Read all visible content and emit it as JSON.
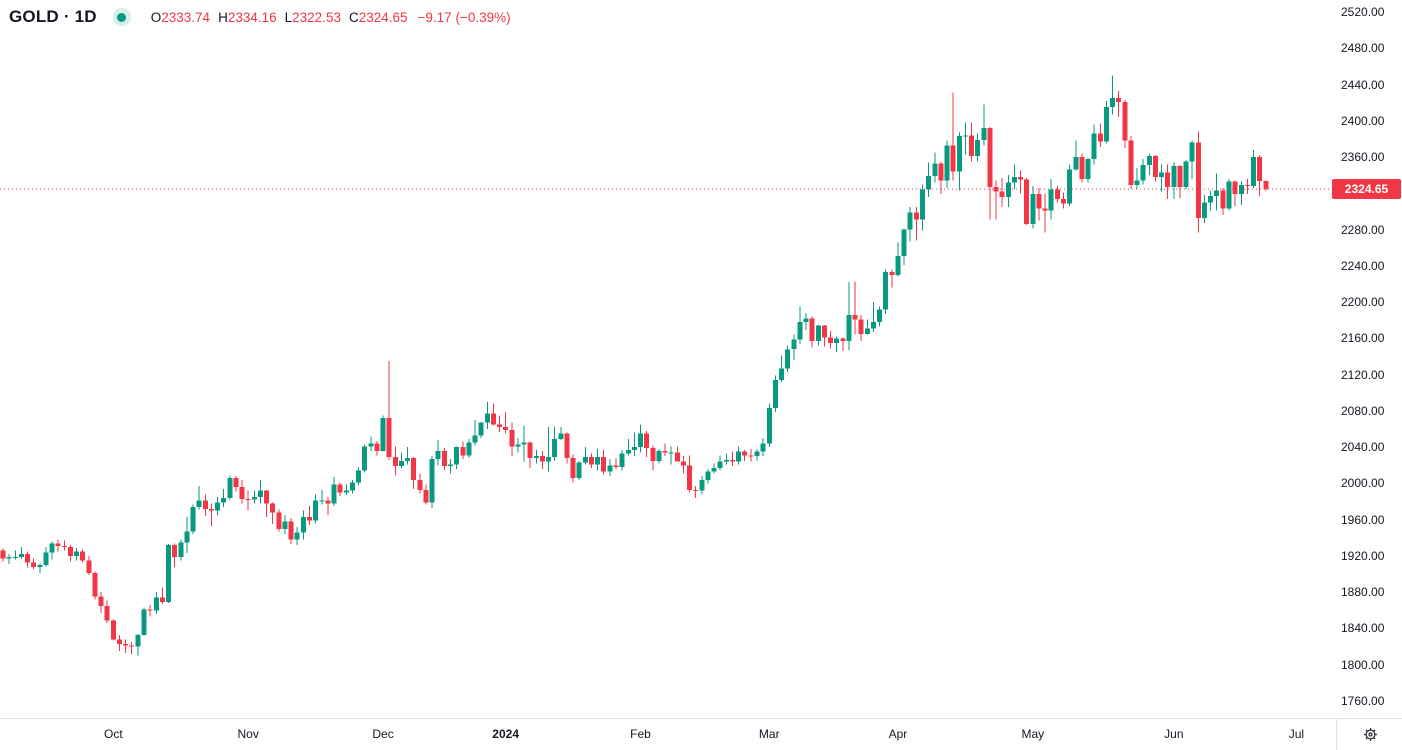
{
  "header": {
    "title": "GOLD · 1D",
    "ohlc": {
      "o_label": "O",
      "o_value": "2333.74",
      "h_label": "H",
      "h_value": "2334.16",
      "l_label": "L",
      "l_value": "2322.53",
      "c_label": "C",
      "c_value": "2324.65",
      "change": "−9.17 (−0.39%)"
    }
  },
  "colors": {
    "up": "#089981",
    "down": "#F23645",
    "text": "#131722",
    "divider": "#e0e3eb",
    "last_price_line": "#F23645",
    "badge_bg": "#F23645",
    "badge_text": "#ffffff",
    "status_dot": "#089981"
  },
  "price_axis": {
    "last_price_label": "2324.65",
    "labels": [
      {
        "text": "2520.00",
        "value": 2520
      },
      {
        "text": "2480.00",
        "value": 2480
      },
      {
        "text": "2440.00",
        "value": 2440
      },
      {
        "text": "2400.00",
        "value": 2400
      },
      {
        "text": "2360.00",
        "value": 2360
      },
      {
        "text": "2280.00",
        "value": 2280
      },
      {
        "text": "2240.00",
        "value": 2240
      },
      {
        "text": "2200.00",
        "value": 2200
      },
      {
        "text": "2160.00",
        "value": 2160
      },
      {
        "text": "2120.00",
        "value": 2120
      },
      {
        "text": "2080.00",
        "value": 2080
      },
      {
        "text": "2040.00",
        "value": 2040
      },
      {
        "text": "2000.00",
        "value": 2000
      },
      {
        "text": "1960.00",
        "value": 1960
      },
      {
        "text": "1920.00",
        "value": 1920
      },
      {
        "text": "1880.00",
        "value": 1880
      },
      {
        "text": "1840.00",
        "value": 1840
      },
      {
        "text": "1800.00",
        "value": 1800
      },
      {
        "text": "1760.00",
        "value": 1760
      }
    ]
  },
  "chart_data": {
    "type": "candlestick",
    "title": "GOLD · 1D",
    "symbol": "GOLD",
    "timeframe": "1D",
    "frequency": "daily",
    "last_price": 2324.65,
    "ohlc_last": {
      "open": 2333.74,
      "high": 2334.16,
      "low": 2322.53,
      "close": 2324.65,
      "change": -9.17,
      "change_pct": -0.39
    },
    "y_axis": {
      "label_min": 1760,
      "label_max": 2520,
      "step": 40,
      "grid": false
    },
    "months": [
      {
        "label": "Oct",
        "index": 18,
        "bold": false
      },
      {
        "label": "Nov",
        "index": 40,
        "bold": false
      },
      {
        "label": "Dec",
        "index": 62,
        "bold": false
      },
      {
        "label": "2024",
        "index": 82,
        "bold": true
      },
      {
        "label": "Feb",
        "index": 104,
        "bold": false
      },
      {
        "label": "Mar",
        "index": 125,
        "bold": false
      },
      {
        "label": "Apr",
        "index": 146,
        "bold": false
      },
      {
        "label": "May",
        "index": 168,
        "bold": false
      },
      {
        "label": "Jun",
        "index": 191,
        "bold": false
      },
      {
        "label": "Jul",
        "index": 211,
        "bold": false
      }
    ],
    "candles": [
      [
        1926,
        1928,
        1914,
        1917
      ],
      [
        1917,
        1922,
        1911,
        1919
      ],
      [
        1919,
        1926,
        1916,
        1919
      ],
      [
        1919,
        1930,
        1917,
        1922
      ],
      [
        1922,
        1925,
        1907,
        1913
      ],
      [
        1913,
        1917,
        1905,
        1908
      ],
      [
        1908,
        1912,
        1901,
        1910
      ],
      [
        1910,
        1930,
        1908,
        1924
      ],
      [
        1924,
        1936,
        1916,
        1934
      ],
      [
        1934,
        1938,
        1925,
        1931
      ],
      [
        1931,
        1937,
        1926,
        1930
      ],
      [
        1930,
        1932,
        1914,
        1920
      ],
      [
        1920,
        1929,
        1915,
        1925
      ],
      [
        1925,
        1927,
        1913,
        1915
      ],
      [
        1915,
        1920,
        1899,
        1901
      ],
      [
        1901,
        1903,
        1872,
        1875
      ],
      [
        1875,
        1880,
        1857,
        1865
      ],
      [
        1865,
        1871,
        1846,
        1849
      ],
      [
        1849,
        1850,
        1827,
        1828
      ],
      [
        1828,
        1833,
        1815,
        1823
      ],
      [
        1823,
        1828,
        1813,
        1821
      ],
      [
        1821,
        1825,
        1812,
        1820
      ],
      [
        1820,
        1834,
        1810,
        1833
      ],
      [
        1833,
        1863,
        1832,
        1861
      ],
      [
        1861,
        1866,
        1853,
        1860
      ],
      [
        1860,
        1880,
        1856,
        1874
      ],
      [
        1874,
        1885,
        1867,
        1869
      ],
      [
        1869,
        1933,
        1868,
        1932
      ],
      [
        1932,
        1934,
        1908,
        1919
      ],
      [
        1919,
        1938,
        1915,
        1935
      ],
      [
        1935,
        1963,
        1923,
        1947
      ],
      [
        1947,
        1977,
        1944,
        1974
      ],
      [
        1974,
        1997,
        1971,
        1981
      ],
      [
        1981,
        1988,
        1964,
        1972
      ],
      [
        1972,
        1978,
        1953,
        1970
      ],
      [
        1970,
        1985,
        1965,
        1979
      ],
      [
        1979,
        1994,
        1974,
        1984
      ],
      [
        1984,
        2009,
        1982,
        2006
      ],
      [
        2006,
        2008,
        1991,
        1996
      ],
      [
        1996,
        2004,
        1978,
        1983
      ],
      [
        1983,
        1992,
        1970,
        1982
      ],
      [
        1982,
        1992,
        1978,
        1985
      ],
      [
        1985,
        2004,
        1978,
        1992
      ],
      [
        1992,
        1993,
        1963,
        1978
      ],
      [
        1978,
        1979,
        1955,
        1968
      ],
      [
        1968,
        1971,
        1947,
        1950
      ],
      [
        1950,
        1965,
        1944,
        1958
      ],
      [
        1958,
        1962,
        1933,
        1938
      ],
      [
        1938,
        1952,
        1932,
        1946
      ],
      [
        1946,
        1970,
        1938,
        1963
      ],
      [
        1963,
        1975,
        1954,
        1959
      ],
      [
        1959,
        1988,
        1956,
        1981
      ],
      [
        1981,
        1993,
        1977,
        1981
      ],
      [
        1981,
        1985,
        1965,
        1978
      ],
      [
        1978,
        2007,
        1975,
        1999
      ],
      [
        1999,
        2001,
        1986,
        1990
      ],
      [
        1990,
        1999,
        1987,
        1992
      ],
      [
        1992,
        2004,
        1989,
        2001
      ],
      [
        2001,
        2018,
        1998,
        2014
      ],
      [
        2014,
        2043,
        2012,
        2041
      ],
      [
        2041,
        2052,
        2036,
        2044
      ],
      [
        2044,
        2047,
        2031,
        2036
      ],
      [
        2036,
        2075,
        2035,
        2072
      ],
      [
        2072,
        2135,
        2026,
        2029
      ],
      [
        2029,
        2041,
        2009,
        2019
      ],
      [
        2019,
        2034,
        2017,
        2025
      ],
      [
        2025,
        2040,
        2021,
        2028
      ],
      [
        2028,
        2029,
        1994,
        2004
      ],
      [
        2004,
        2011,
        1989,
        1993
      ],
      [
        1993,
        1999,
        1977,
        1979
      ],
      [
        1979,
        2030,
        1973,
        2027
      ],
      [
        2027,
        2048,
        2020,
        2036
      ],
      [
        2036,
        2039,
        2015,
        2019
      ],
      [
        2019,
        2027,
        2011,
        2021
      ],
      [
        2021,
        2041,
        2016,
        2040
      ],
      [
        2040,
        2046,
        2027,
        2031
      ],
      [
        2031,
        2049,
        2028,
        2045
      ],
      [
        2045,
        2070,
        2042,
        2053
      ],
      [
        2053,
        2068,
        2050,
        2067
      ],
      [
        2067,
        2090,
        2060,
        2077
      ],
      [
        2077,
        2088,
        2064,
        2065
      ],
      [
        2065,
        2075,
        2057,
        2062
      ],
      [
        2062,
        2079,
        2055,
        2059
      ],
      [
        2059,
        2067,
        2030,
        2041
      ],
      [
        2041,
        2050,
        2034,
        2043
      ],
      [
        2043,
        2064,
        2024,
        2045
      ],
      [
        2045,
        2046,
        2017,
        2028
      ],
      [
        2028,
        2037,
        2022,
        2030
      ],
      [
        2030,
        2036,
        2016,
        2024
      ],
      [
        2024,
        2062,
        2013,
        2029
      ],
      [
        2029,
        2063,
        2025,
        2049
      ],
      [
        2049,
        2062,
        2048,
        2055
      ],
      [
        2055,
        2056,
        2022,
        2028
      ],
      [
        2028,
        2032,
        2001,
        2006
      ],
      [
        2006,
        2025,
        2004,
        2023
      ],
      [
        2023,
        2040,
        2021,
        2029
      ],
      [
        2029,
        2033,
        2017,
        2021
      ],
      [
        2021,
        2038,
        2014,
        2029
      ],
      [
        2029,
        2037,
        2010,
        2013
      ],
      [
        2013,
        2027,
        2008,
        2020
      ],
      [
        2020,
        2028,
        2016,
        2018
      ],
      [
        2018,
        2037,
        2014,
        2033
      ],
      [
        2033,
        2049,
        2031,
        2037
      ],
      [
        2037,
        2056,
        2030,
        2040
      ],
      [
        2040,
        2065,
        2034,
        2055
      ],
      [
        2055,
        2058,
        2029,
        2039
      ],
      [
        2039,
        2042,
        2015,
        2025
      ],
      [
        2025,
        2038,
        2022,
        2036
      ],
      [
        2036,
        2044,
        2030,
        2034
      ],
      [
        2034,
        2041,
        2021,
        2034
      ],
      [
        2034,
        2041,
        2024,
        2024
      ],
      [
        2024,
        2030,
        2011,
        2020
      ],
      [
        2020,
        2031,
        1990,
        1993
      ],
      [
        1993,
        1997,
        1984,
        1992
      ],
      [
        1992,
        2008,
        1988,
        2004
      ],
      [
        2004,
        2016,
        2000,
        2013
      ],
      [
        2013,
        2022,
        2011,
        2017
      ],
      [
        2017,
        2031,
        2014,
        2024
      ],
      [
        2024,
        2033,
        2021,
        2026
      ],
      [
        2026,
        2035,
        2019,
        2024
      ],
      [
        2024,
        2041,
        2021,
        2035
      ],
      [
        2035,
        2037,
        2025,
        2031
      ],
      [
        2031,
        2038,
        2024,
        2030
      ],
      [
        2030,
        2038,
        2025,
        2035
      ],
      [
        2035,
        2050,
        2030,
        2044
      ],
      [
        2044,
        2088,
        2040,
        2083
      ],
      [
        2083,
        2119,
        2079,
        2114
      ],
      [
        2114,
        2141,
        2112,
        2127
      ],
      [
        2127,
        2152,
        2123,
        2148
      ],
      [
        2148,
        2164,
        2136,
        2159
      ],
      [
        2159,
        2195,
        2154,
        2178
      ],
      [
        2178,
        2188,
        2169,
        2182
      ],
      [
        2182,
        2184,
        2150,
        2157
      ],
      [
        2157,
        2175,
        2152,
        2174
      ],
      [
        2174,
        2175,
        2151,
        2161
      ],
      [
        2161,
        2168,
        2149,
        2155
      ],
      [
        2155,
        2162,
        2145,
        2160
      ],
      [
        2160,
        2161,
        2146,
        2157
      ],
      [
        2157,
        2222,
        2147,
        2186
      ],
      [
        2186,
        2223,
        2164,
        2181
      ],
      [
        2181,
        2186,
        2157,
        2165
      ],
      [
        2165,
        2181,
        2164,
        2171
      ],
      [
        2171,
        2200,
        2167,
        2178
      ],
      [
        2178,
        2195,
        2173,
        2192
      ],
      [
        2192,
        2236,
        2187,
        2233
      ],
      [
        2233,
        2236,
        2216,
        2230
      ],
      [
        2230,
        2266,
        2228,
        2251
      ],
      [
        2251,
        2281,
        2241,
        2280
      ],
      [
        2280,
        2305,
        2267,
        2299
      ],
      [
        2299,
        2305,
        2268,
        2291
      ],
      [
        2291,
        2330,
        2279,
        2324
      ],
      [
        2324,
        2354,
        2316,
        2339
      ],
      [
        2339,
        2365,
        2332,
        2353
      ],
      [
        2353,
        2355,
        2319,
        2334
      ],
      [
        2334,
        2378,
        2326,
        2373
      ],
      [
        2373,
        2431,
        2334,
        2344
      ],
      [
        2344,
        2387,
        2323,
        2383
      ],
      [
        2383,
        2398,
        2363,
        2384
      ],
      [
        2384,
        2398,
        2355,
        2361
      ],
      [
        2361,
        2386,
        2355,
        2379
      ],
      [
        2379,
        2418,
        2373,
        2392
      ],
      [
        2392,
        2393,
        2291,
        2327
      ],
      [
        2327,
        2334,
        2291,
        2322
      ],
      [
        2322,
        2337,
        2305,
        2316
      ],
      [
        2316,
        2340,
        2305,
        2332
      ],
      [
        2332,
        2352,
        2325,
        2338
      ],
      [
        2338,
        2345,
        2320,
        2335
      ],
      [
        2335,
        2337,
        2285,
        2286
      ],
      [
        2286,
        2328,
        2281,
        2319
      ],
      [
        2319,
        2326,
        2290,
        2303
      ],
      [
        2303,
        2320,
        2277,
        2301
      ],
      [
        2301,
        2336,
        2291,
        2324
      ],
      [
        2324,
        2328,
        2310,
        2314
      ],
      [
        2314,
        2321,
        2303,
        2309
      ],
      [
        2309,
        2352,
        2306,
        2346
      ],
      [
        2346,
        2378,
        2345,
        2360
      ],
      [
        2360,
        2364,
        2332,
        2336
      ],
      [
        2336,
        2359,
        2332,
        2358
      ],
      [
        2358,
        2396,
        2352,
        2386
      ],
      [
        2386,
        2397,
        2371,
        2377
      ],
      [
        2377,
        2422,
        2375,
        2415
      ],
      [
        2415,
        2450,
        2407,
        2425
      ],
      [
        2425,
        2433,
        2404,
        2421
      ],
      [
        2421,
        2423,
        2370,
        2378
      ],
      [
        2378,
        2383,
        2325,
        2329
      ],
      [
        2329,
        2348,
        2325,
        2334
      ],
      [
        2334,
        2358,
        2330,
        2351
      ],
      [
        2351,
        2364,
        2340,
        2361
      ],
      [
        2361,
        2362,
        2333,
        2338
      ],
      [
        2338,
        2352,
        2322,
        2343
      ],
      [
        2343,
        2352,
        2314,
        2327
      ],
      [
        2327,
        2354,
        2314,
        2350
      ],
      [
        2350,
        2351,
        2315,
        2327
      ],
      [
        2327,
        2357,
        2325,
        2355
      ],
      [
        2355,
        2378,
        2336,
        2376
      ],
      [
        2376,
        2388,
        2277,
        2293
      ],
      [
        2293,
        2318,
        2287,
        2310
      ],
      [
        2310,
        2323,
        2301,
        2317
      ],
      [
        2317,
        2342,
        2301,
        2323
      ],
      [
        2323,
        2326,
        2296,
        2303
      ],
      [
        2303,
        2336,
        2301,
        2333
      ],
      [
        2333,
        2334,
        2306,
        2319
      ],
      [
        2319,
        2333,
        2307,
        2329
      ],
      [
        2329,
        2336,
        2319,
        2328
      ],
      [
        2328,
        2368,
        2326,
        2360
      ],
      [
        2360,
        2362,
        2317,
        2333.82
      ],
      [
        2333.74,
        2334.16,
        2322.53,
        2324.65
      ]
    ]
  },
  "footer": {
    "settings_icon": "gear-icon"
  }
}
